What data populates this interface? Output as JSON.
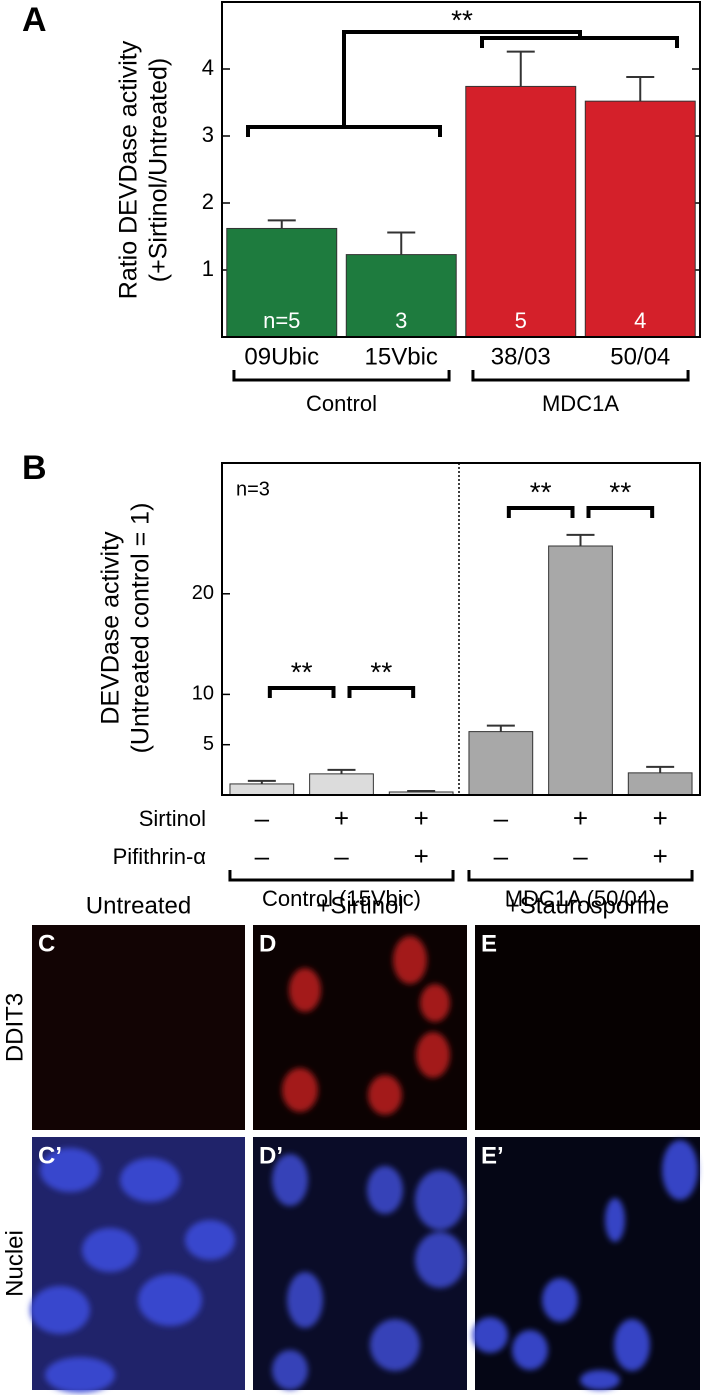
{
  "chart_data": [
    {
      "type": "bar",
      "panel": "A",
      "ylabel": [
        "Ratio DEVDase activity",
        "(+Sirtinol/Untreated)"
      ],
      "categories": [
        "09Ubic",
        "15Vbic",
        "38/03",
        "50/04"
      ],
      "values": [
        1.62,
        1.23,
        3.74,
        3.52
      ],
      "errors": [
        0.12,
        0.33,
        0.52,
        0.36
      ],
      "colors": [
        "#1e7b3e",
        "#1e7b3e",
        "#d4202a",
        "#d4202a"
      ],
      "n_labels": [
        "n=5",
        "3",
        "5",
        "4"
      ],
      "groups": [
        "Control",
        "MDC1A"
      ],
      "significance": [
        "**"
      ],
      "ylim": [
        0,
        5
      ],
      "yticks": [
        1,
        2,
        3,
        4
      ]
    },
    {
      "type": "bar",
      "panel": "B",
      "ylabel": [
        "DEVDase activity",
        "(Untreated control = 1)"
      ],
      "note": "n=3",
      "values": [
        1.1,
        2.1,
        0.3,
        6.3,
        24.75,
        2.2
      ],
      "errors": [
        0.3,
        0.4,
        0.1,
        0.6,
        1.1,
        0.6
      ],
      "colors": [
        "#dcdcdc",
        "#dcdcdc",
        "#dcdcdc",
        "#a8a8a8",
        "#a8a8a8",
        "#a8a8a8"
      ],
      "treatments": [
        {
          "name": "Sirtinol",
          "marks": [
            "–",
            "+",
            "+",
            "–",
            "+",
            "+"
          ]
        },
        {
          "name": "Pifithrin-α",
          "marks": [
            "–",
            "–",
            "+",
            "–",
            "–",
            "+"
          ]
        }
      ],
      "groups": [
        "Control (15Vbic)",
        "MDC1A (50/04)"
      ],
      "significance": [
        "**",
        "**",
        "**",
        "**"
      ],
      "ylim": [
        0,
        33
      ],
      "yticks": [
        5,
        10,
        20
      ]
    }
  ],
  "micrographs": {
    "columns": [
      "Untreated",
      "+Sirtinol",
      "+Staurosporine"
    ],
    "rows": [
      "DDIT3",
      "Nuclei"
    ],
    "panels": [
      [
        "C",
        "D",
        "E"
      ],
      [
        "C’",
        "D’",
        "E’"
      ]
    ]
  }
}
